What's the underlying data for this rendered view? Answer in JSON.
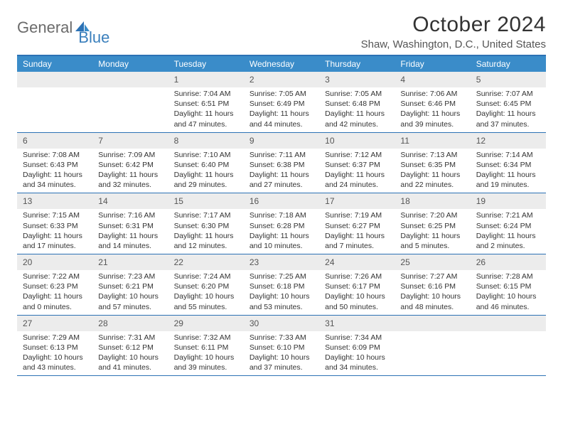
{
  "logo": {
    "general": "General",
    "blue": "Blue"
  },
  "title": "October 2024",
  "subtitle": "Shaw, Washington, D.C., United States",
  "colors": {
    "header_bar": "#3a8cc9",
    "border": "#2c72b5",
    "daynum_bg": "#ececec",
    "logo_gray": "#6b6b6b",
    "logo_blue": "#3a7fbc"
  },
  "days_of_week": [
    "Sunday",
    "Monday",
    "Tuesday",
    "Wednesday",
    "Thursday",
    "Friday",
    "Saturday"
  ],
  "weeks": [
    [
      {
        "n": "",
        "sr": "",
        "ss": "",
        "dl": ""
      },
      {
        "n": "",
        "sr": "",
        "ss": "",
        "dl": ""
      },
      {
        "n": "1",
        "sr": "Sunrise: 7:04 AM",
        "ss": "Sunset: 6:51 PM",
        "dl": "Daylight: 11 hours and 47 minutes."
      },
      {
        "n": "2",
        "sr": "Sunrise: 7:05 AM",
        "ss": "Sunset: 6:49 PM",
        "dl": "Daylight: 11 hours and 44 minutes."
      },
      {
        "n": "3",
        "sr": "Sunrise: 7:05 AM",
        "ss": "Sunset: 6:48 PM",
        "dl": "Daylight: 11 hours and 42 minutes."
      },
      {
        "n": "4",
        "sr": "Sunrise: 7:06 AM",
        "ss": "Sunset: 6:46 PM",
        "dl": "Daylight: 11 hours and 39 minutes."
      },
      {
        "n": "5",
        "sr": "Sunrise: 7:07 AM",
        "ss": "Sunset: 6:45 PM",
        "dl": "Daylight: 11 hours and 37 minutes."
      }
    ],
    [
      {
        "n": "6",
        "sr": "Sunrise: 7:08 AM",
        "ss": "Sunset: 6:43 PM",
        "dl": "Daylight: 11 hours and 34 minutes."
      },
      {
        "n": "7",
        "sr": "Sunrise: 7:09 AM",
        "ss": "Sunset: 6:42 PM",
        "dl": "Daylight: 11 hours and 32 minutes."
      },
      {
        "n": "8",
        "sr": "Sunrise: 7:10 AM",
        "ss": "Sunset: 6:40 PM",
        "dl": "Daylight: 11 hours and 29 minutes."
      },
      {
        "n": "9",
        "sr": "Sunrise: 7:11 AM",
        "ss": "Sunset: 6:38 PM",
        "dl": "Daylight: 11 hours and 27 minutes."
      },
      {
        "n": "10",
        "sr": "Sunrise: 7:12 AM",
        "ss": "Sunset: 6:37 PM",
        "dl": "Daylight: 11 hours and 24 minutes."
      },
      {
        "n": "11",
        "sr": "Sunrise: 7:13 AM",
        "ss": "Sunset: 6:35 PM",
        "dl": "Daylight: 11 hours and 22 minutes."
      },
      {
        "n": "12",
        "sr": "Sunrise: 7:14 AM",
        "ss": "Sunset: 6:34 PM",
        "dl": "Daylight: 11 hours and 19 minutes."
      }
    ],
    [
      {
        "n": "13",
        "sr": "Sunrise: 7:15 AM",
        "ss": "Sunset: 6:33 PM",
        "dl": "Daylight: 11 hours and 17 minutes."
      },
      {
        "n": "14",
        "sr": "Sunrise: 7:16 AM",
        "ss": "Sunset: 6:31 PM",
        "dl": "Daylight: 11 hours and 14 minutes."
      },
      {
        "n": "15",
        "sr": "Sunrise: 7:17 AM",
        "ss": "Sunset: 6:30 PM",
        "dl": "Daylight: 11 hours and 12 minutes."
      },
      {
        "n": "16",
        "sr": "Sunrise: 7:18 AM",
        "ss": "Sunset: 6:28 PM",
        "dl": "Daylight: 11 hours and 10 minutes."
      },
      {
        "n": "17",
        "sr": "Sunrise: 7:19 AM",
        "ss": "Sunset: 6:27 PM",
        "dl": "Daylight: 11 hours and 7 minutes."
      },
      {
        "n": "18",
        "sr": "Sunrise: 7:20 AM",
        "ss": "Sunset: 6:25 PM",
        "dl": "Daylight: 11 hours and 5 minutes."
      },
      {
        "n": "19",
        "sr": "Sunrise: 7:21 AM",
        "ss": "Sunset: 6:24 PM",
        "dl": "Daylight: 11 hours and 2 minutes."
      }
    ],
    [
      {
        "n": "20",
        "sr": "Sunrise: 7:22 AM",
        "ss": "Sunset: 6:23 PM",
        "dl": "Daylight: 11 hours and 0 minutes."
      },
      {
        "n": "21",
        "sr": "Sunrise: 7:23 AM",
        "ss": "Sunset: 6:21 PM",
        "dl": "Daylight: 10 hours and 57 minutes."
      },
      {
        "n": "22",
        "sr": "Sunrise: 7:24 AM",
        "ss": "Sunset: 6:20 PM",
        "dl": "Daylight: 10 hours and 55 minutes."
      },
      {
        "n": "23",
        "sr": "Sunrise: 7:25 AM",
        "ss": "Sunset: 6:18 PM",
        "dl": "Daylight: 10 hours and 53 minutes."
      },
      {
        "n": "24",
        "sr": "Sunrise: 7:26 AM",
        "ss": "Sunset: 6:17 PM",
        "dl": "Daylight: 10 hours and 50 minutes."
      },
      {
        "n": "25",
        "sr": "Sunrise: 7:27 AM",
        "ss": "Sunset: 6:16 PM",
        "dl": "Daylight: 10 hours and 48 minutes."
      },
      {
        "n": "26",
        "sr": "Sunrise: 7:28 AM",
        "ss": "Sunset: 6:15 PM",
        "dl": "Daylight: 10 hours and 46 minutes."
      }
    ],
    [
      {
        "n": "27",
        "sr": "Sunrise: 7:29 AM",
        "ss": "Sunset: 6:13 PM",
        "dl": "Daylight: 10 hours and 43 minutes."
      },
      {
        "n": "28",
        "sr": "Sunrise: 7:31 AM",
        "ss": "Sunset: 6:12 PM",
        "dl": "Daylight: 10 hours and 41 minutes."
      },
      {
        "n": "29",
        "sr": "Sunrise: 7:32 AM",
        "ss": "Sunset: 6:11 PM",
        "dl": "Daylight: 10 hours and 39 minutes."
      },
      {
        "n": "30",
        "sr": "Sunrise: 7:33 AM",
        "ss": "Sunset: 6:10 PM",
        "dl": "Daylight: 10 hours and 37 minutes."
      },
      {
        "n": "31",
        "sr": "Sunrise: 7:34 AM",
        "ss": "Sunset: 6:09 PM",
        "dl": "Daylight: 10 hours and 34 minutes."
      },
      {
        "n": "",
        "sr": "",
        "ss": "",
        "dl": ""
      },
      {
        "n": "",
        "sr": "",
        "ss": "",
        "dl": ""
      }
    ]
  ]
}
